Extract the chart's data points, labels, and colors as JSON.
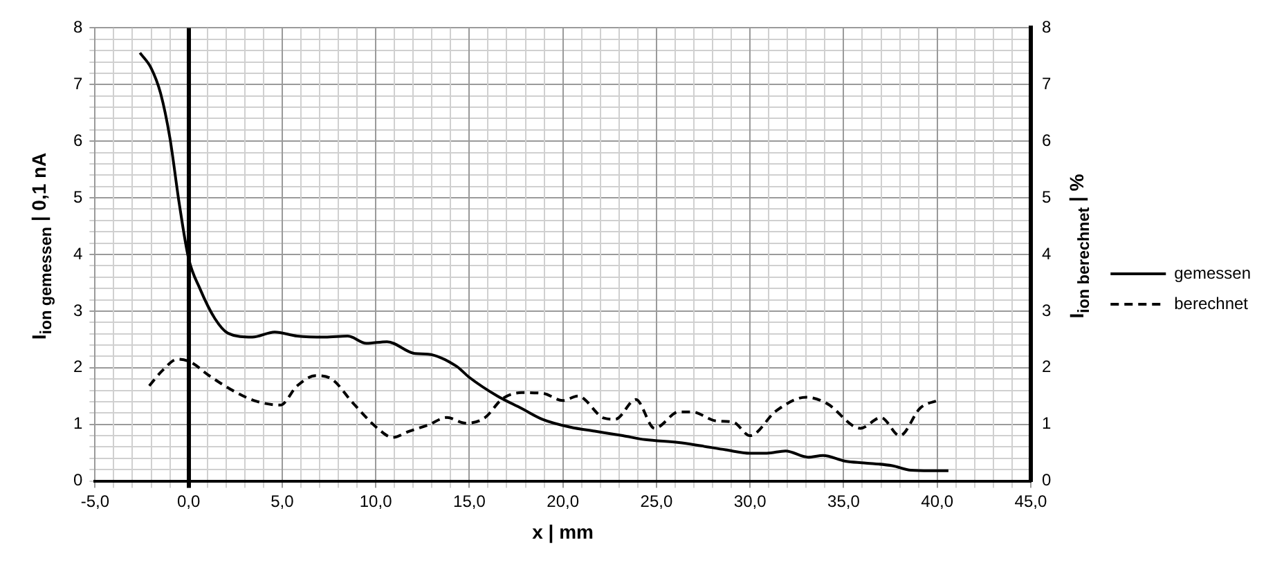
{
  "chart_data": {
    "type": "line",
    "xlabel": "x | mm",
    "ylabel": "I$_{ion gemessen}$ | 0,1 nA",
    "y2label": "I$_{ion berechnet}$ | %",
    "xlim": [
      -5,
      45
    ],
    "xticks": [
      {
        "value": -5,
        "label": "-5,0"
      },
      {
        "value": -4,
        "label": null
      },
      {
        "value": -3,
        "label": null
      },
      {
        "value": -2,
        "label": null
      },
      {
        "value": -1,
        "label": null
      },
      {
        "value": 0,
        "label": "0,0"
      },
      {
        "value": 1,
        "label": null
      },
      {
        "value": 2,
        "label": null
      },
      {
        "value": 3,
        "label": null
      },
      {
        "value": 4,
        "label": null
      },
      {
        "value": 5,
        "label": "5,0"
      },
      {
        "value": 6,
        "label": null
      },
      {
        "value": 7,
        "label": null
      },
      {
        "value": 8,
        "label": null
      },
      {
        "value": 9,
        "label": null
      },
      {
        "value": 10,
        "label": "10,0"
      },
      {
        "value": 11,
        "label": null
      },
      {
        "value": 12,
        "label": null
      },
      {
        "value": 13,
        "label": null
      },
      {
        "value": 14,
        "label": null
      },
      {
        "value": 15,
        "label": "15,0"
      },
      {
        "value": 16,
        "label": null
      },
      {
        "value": 17,
        "label": null
      },
      {
        "value": 18,
        "label": null
      },
      {
        "value": 19,
        "label": null
      },
      {
        "value": 20,
        "label": "20,0"
      },
      {
        "value": 21,
        "label": null
      },
      {
        "value": 22,
        "label": null
      },
      {
        "value": 23,
        "label": null
      },
      {
        "value": 24,
        "label": null
      },
      {
        "value": 25,
        "label": "25,0"
      },
      {
        "value": 26,
        "label": null
      },
      {
        "value": 27,
        "label": null
      },
      {
        "value": 28,
        "label": null
      },
      {
        "value": 29,
        "label": null
      },
      {
        "value": 30,
        "label": "30,0"
      },
      {
        "value": 31,
        "label": null
      },
      {
        "value": 32,
        "label": null
      },
      {
        "value": 33,
        "label": null
      },
      {
        "value": 34,
        "label": null
      },
      {
        "value": 35,
        "label": "35,0"
      },
      {
        "value": 36,
        "label": null
      },
      {
        "value": 37,
        "label": null
      },
      {
        "value": 38,
        "label": null
      },
      {
        "value": 39,
        "label": null
      },
      {
        "value": 40,
        "label": "40,0"
      },
      {
        "value": 41,
        "label": null
      },
      {
        "value": 42,
        "label": null
      },
      {
        "value": 43,
        "label": null
      },
      {
        "value": 44,
        "label": null
      },
      {
        "value": 45,
        "label": "45,0"
      }
    ],
    "ylim": [
      0,
      8
    ],
    "yticks": [
      0,
      {
        "value": 0.2,
        "label": null
      },
      {
        "value": 0.4,
        "label": null
      },
      {
        "value": 0.6,
        "label": null
      },
      {
        "value": 0.8,
        "label": null
      },
      1,
      {
        "value": 1.2,
        "label": null
      },
      {
        "value": 1.4,
        "label": null
      },
      {
        "value": 1.6,
        "label": null
      },
      {
        "value": 1.8,
        "label": null
      },
      2,
      {
        "value": 2.2,
        "label": null
      },
      {
        "value": 2.4,
        "label": null
      },
      {
        "value": 2.6,
        "label": null
      },
      {
        "value": 2.8,
        "label": null
      },
      3,
      {
        "value": 3.2,
        "label": null
      },
      {
        "value": 3.4,
        "label": null
      },
      {
        "value": 3.6,
        "label": null
      },
      {
        "value": 3.8,
        "label": null
      },
      4,
      {
        "value": 4.2,
        "label": null
      },
      {
        "value": 4.4,
        "label": null
      },
      {
        "value": 4.6,
        "label": null
      },
      {
        "value": 4.8,
        "label": null
      },
      5,
      {
        "value": 5.2,
        "label": null
      },
      {
        "value": 5.4,
        "label": null
      },
      {
        "value": 5.6,
        "label": null
      },
      {
        "value": 5.8,
        "label": null
      },
      6,
      {
        "value": 6.2,
        "label": null
      },
      {
        "value": 6.4,
        "label": null
      },
      {
        "value": 6.6,
        "label": null
      },
      {
        "value": 6.8,
        "label": null
      },
      7,
      {
        "value": 7.2,
        "label": null
      },
      {
        "value": 7.4,
        "label": null
      },
      {
        "value": 7.6,
        "label": null
      },
      {
        "value": 7.8,
        "label": null
      },
      8
    ],
    "y2lim": [
      0,
      8
    ],
    "y2ticks": [
      0,
      1,
      2,
      3,
      4,
      5,
      6,
      7,
      8
    ],
    "grid": true,
    "legend": "right",
    "marker": "none",
    "series": [
      {
        "name": "gemessen",
        "color": "#000000",
        "line_style": "solid",
        "x": [
          -2.6,
          -2.0,
          -1.5,
          -1.0,
          -0.5,
          0,
          0.6,
          1.4,
          2.1,
          3.4,
          4.6,
          5.8,
          7.3,
          8.5,
          9.5,
          10.6,
          12.1,
          12.8,
          14.3,
          15.0,
          16.5,
          17.8,
          18.9,
          20.4,
          21.7,
          23.2,
          24.4,
          26.2,
          27.4,
          28.7,
          30.0,
          30.9,
          31.9,
          33.1,
          33.9,
          35.1,
          36.1,
          37.6,
          38.6,
          39.6,
          40.6
        ],
        "values": [
          7.56,
          7.29,
          6.85,
          6.06,
          4.9,
          3.93,
          3.4,
          2.87,
          2.61,
          2.54,
          2.63,
          2.56,
          2.54,
          2.56,
          2.43,
          2.46,
          2.25,
          2.24,
          2.03,
          1.83,
          1.5,
          1.28,
          1.09,
          0.95,
          0.88,
          0.8,
          0.73,
          0.68,
          0.62,
          0.55,
          0.49,
          0.49,
          0.53,
          0.42,
          0.45,
          0.35,
          0.32,
          0.27,
          0.19,
          0.18,
          0.18
        ]
      },
      {
        "name": "berechnet",
        "color": "#000000",
        "line_style": "dashed",
        "axis": "y2",
        "x": [
          -2.1,
          -1.4,
          -0.6,
          0.1,
          1.1,
          2.4,
          3.6,
          4.9,
          5.8,
          6.8,
          7.6,
          8.8,
          10.1,
          10.9,
          11.8,
          12.8,
          13.8,
          14.8,
          15.8,
          16.8,
          17.8,
          18.9,
          20.0,
          20.8,
          22.2,
          22.8,
          23.9,
          24.9,
          26.2,
          26.9,
          28.2,
          29.1,
          30.0,
          31.4,
          33.0,
          34.1,
          35.9,
          37.0,
          38.0,
          39.1,
          40.1
        ],
        "values": [
          1.68,
          1.95,
          2.15,
          2.1,
          1.86,
          1.59,
          1.41,
          1.34,
          1.68,
          1.86,
          1.81,
          1.37,
          0.93,
          0.77,
          0.88,
          0.99,
          1.12,
          1.02,
          1.11,
          1.46,
          1.56,
          1.55,
          1.42,
          1.5,
          1.11,
          1.09,
          1.44,
          0.93,
          1.22,
          1.22,
          1.06,
          1.04,
          0.8,
          1.24,
          1.48,
          1.37,
          0.93,
          1.12,
          0.8,
          1.29,
          1.43
        ]
      }
    ]
  }
}
